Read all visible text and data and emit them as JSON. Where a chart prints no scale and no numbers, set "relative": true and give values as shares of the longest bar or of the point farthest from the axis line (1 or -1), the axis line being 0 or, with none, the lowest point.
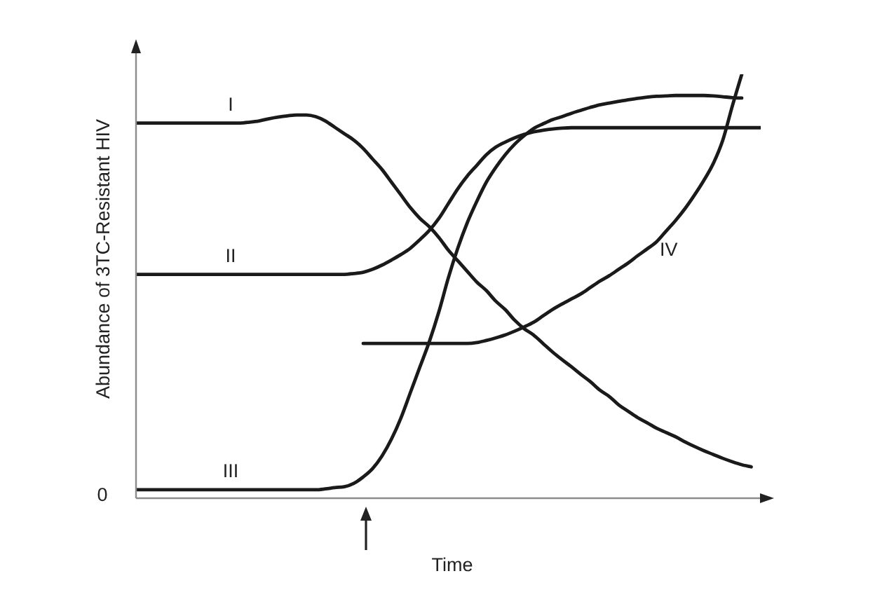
{
  "chart_data": {
    "type": "line",
    "relative": true,
    "xlabel": "Time",
    "ylabel": "Abundance of 3TC-Resistant HIV",
    "annotations": [
      "0"
    ],
    "categories": [
      null,
      null,
      null,
      null,
      null,
      null,
      null,
      null,
      null,
      null,
      null,
      null,
      null,
      null,
      null,
      null,
      null,
      null,
      null,
      null,
      null,
      null,
      null,
      null,
      null,
      null,
      null,
      null,
      null,
      null,
      null,
      null,
      null,
      null,
      null,
      null,
      null,
      null,
      null,
      null,
      null,
      null,
      null,
      null,
      null,
      null,
      null,
      null,
      null,
      null,
      null,
      null,
      null,
      null,
      null,
      null,
      null,
      null,
      null,
      null,
      null,
      null,
      null,
      null,
      null,
      null,
      null
    ],
    "series": [
      {
        "name": "I",
        "color": "#1a1a1a",
        "values": [
          0.885,
          0.885,
          0.885,
          0.885,
          0.885,
          0.885,
          0.885,
          0.885,
          0.885,
          0.885,
          0.885,
          0.885,
          0.887,
          0.89,
          0.895,
          0.899,
          0.902,
          0.904,
          0.904,
          0.9,
          0.89,
          0.875,
          0.86,
          0.845,
          0.825,
          0.8,
          0.775,
          0.745,
          0.715,
          0.685,
          0.66,
          0.64,
          0.615,
          0.585,
          0.56,
          0.535,
          0.51,
          0.49,
          0.465,
          0.445,
          0.42,
          0.4,
          0.385,
          0.365,
          0.345,
          0.327,
          0.31,
          0.292,
          0.275,
          0.255,
          0.24,
          0.22,
          0.205,
          0.19,
          0.178,
          0.165,
          0.155,
          0.145,
          0.133,
          0.122,
          0.112,
          0.103,
          0.094,
          0.086,
          0.079,
          0.074,
          null
        ]
      },
      {
        "name": "II",
        "color": "#1a1a1a",
        "values": [
          0.528,
          0.528,
          0.528,
          0.528,
          0.528,
          0.528,
          0.528,
          0.528,
          0.528,
          0.528,
          0.528,
          0.528,
          0.528,
          0.528,
          0.528,
          0.528,
          0.528,
          0.528,
          0.528,
          0.528,
          0.528,
          0.528,
          0.528,
          0.53,
          0.533,
          0.54,
          0.55,
          0.562,
          0.575,
          0.59,
          0.61,
          0.632,
          0.66,
          0.695,
          0.73,
          0.76,
          0.785,
          0.81,
          0.828,
          0.84,
          0.85,
          0.858,
          0.864,
          0.868,
          0.871,
          0.873,
          0.874,
          0.874,
          0.874,
          0.874,
          0.874,
          0.874,
          0.874,
          0.874,
          0.874,
          0.874,
          0.874,
          0.874,
          0.874,
          0.874,
          0.874,
          0.874,
          0.874,
          0.874,
          0.874,
          0.874,
          0.874
        ]
      },
      {
        "name": "III",
        "color": "#1a1a1a",
        "values": [
          0.02,
          0.02,
          0.02,
          0.02,
          0.02,
          0.02,
          0.02,
          0.02,
          0.02,
          0.02,
          0.02,
          0.02,
          0.02,
          0.02,
          0.02,
          0.02,
          0.02,
          0.02,
          0.02,
          0.02,
          0.022,
          0.025,
          0.027,
          0.035,
          0.05,
          0.07,
          0.1,
          0.14,
          0.19,
          0.25,
          0.31,
          0.37,
          0.44,
          0.52,
          0.59,
          0.65,
          0.7,
          0.745,
          0.78,
          0.81,
          0.835,
          0.855,
          0.872,
          0.883,
          0.893,
          0.9,
          0.908,
          0.915,
          0.922,
          0.928,
          0.932,
          0.936,
          0.94,
          0.943,
          0.946,
          0.948,
          0.949,
          0.95,
          0.95,
          0.95,
          0.95,
          0.949,
          0.947,
          0.945,
          0.944,
          null,
          null
        ]
      },
      {
        "name": "IV",
        "color": "#1a1a1a",
        "values": [
          null,
          null,
          null,
          null,
          null,
          null,
          null,
          null,
          null,
          null,
          null,
          null,
          null,
          null,
          null,
          null,
          null,
          null,
          null,
          null,
          null,
          null,
          null,
          null,
          0.365,
          0.365,
          0.365,
          0.365,
          0.365,
          0.365,
          0.365,
          0.365,
          0.365,
          0.365,
          0.365,
          0.365,
          0.367,
          0.372,
          0.378,
          0.385,
          0.394,
          0.404,
          0.415,
          0.43,
          0.445,
          0.458,
          0.47,
          0.482,
          0.497,
          0.512,
          0.525,
          0.54,
          0.555,
          0.572,
          0.588,
          0.605,
          0.63,
          0.655,
          0.683,
          0.715,
          0.75,
          0.79,
          0.845,
          0.925,
          1.0,
          null,
          null
        ]
      }
    ]
  }
}
